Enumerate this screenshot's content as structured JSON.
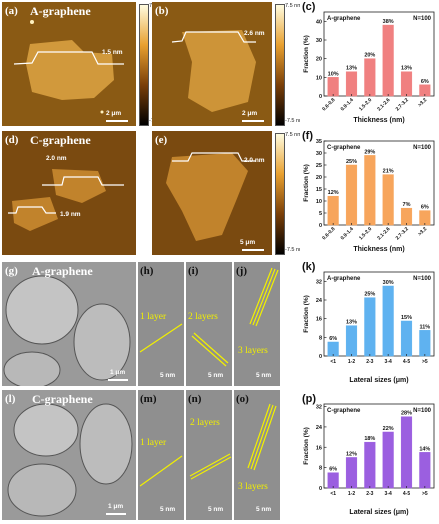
{
  "panels": {
    "a": {
      "letter": "(a)",
      "title": "A-graphene",
      "height_label": "1.5 nm",
      "scale": "2 μm"
    },
    "b": {
      "letter": "(b)",
      "height_label": "2.6 nm",
      "scale": "2 μm"
    },
    "d": {
      "letter": "(d)",
      "title": "C-graphene",
      "height_labels": [
        "2.0 nm",
        "1.9 nm"
      ],
      "scale": ""
    },
    "e": {
      "letter": "(e)",
      "height_label": "2.0 nm",
      "scale": "5 μm"
    },
    "g": {
      "letter": "(g)",
      "title": "A-graphene",
      "scale": "1 μm"
    },
    "h": {
      "letter": "(h)",
      "layer_label": "1 layer",
      "scale": "5 nm"
    },
    "i": {
      "letter": "(i)",
      "layer_label": "2 layers",
      "scale": "5 nm"
    },
    "j": {
      "letter": "(j)",
      "layer_label": "3 layers",
      "scale": "5 nm"
    },
    "l": {
      "letter": "(l)",
      "title": "C-graphene",
      "scale": "1 μm"
    },
    "m": {
      "letter": "(m)",
      "layer_label": "1 layer",
      "scale": "5 nm"
    },
    "n": {
      "letter": "(n)",
      "layer_label": "2 layers",
      "scale": "5 nm"
    },
    "o": {
      "letter": "(o)",
      "layer_label": "3 layers",
      "scale": "5 nm"
    }
  },
  "colorbar": {
    "top": "7.5 nm",
    "bottom": "-7.5 nm"
  },
  "chart_data": [
    {
      "letter": "(c)",
      "type": "bar",
      "label": "A-graphene",
      "n": "N=100",
      "categories": [
        "0.6-0.8",
        "0.9-1.4",
        "1.5-2.0",
        "2.1-2.6",
        "2.7-3.2",
        ">3.2"
      ],
      "values": [
        10,
        13,
        20,
        38,
        13,
        6
      ],
      "value_labels": [
        "10%",
        "13%",
        "20%",
        "38%",
        "13%",
        "6%"
      ],
      "yticks": [
        "0",
        "10",
        "20",
        "30",
        "40"
      ],
      "ylim": [
        0,
        45
      ],
      "xlabel": "Thickness (nm)",
      "ylabel": "Fraction (%)",
      "color": "#f08080"
    },
    {
      "letter": "(f)",
      "type": "bar",
      "label": "C-graphene",
      "n": "N=100",
      "categories": [
        "0.6-0.8",
        "0.9-1.4",
        "1.5-2.0",
        "2.1-2.6",
        "2.7-3.2",
        ">3.2"
      ],
      "values": [
        12,
        25,
        29,
        21,
        7,
        6
      ],
      "value_labels": [
        "12%",
        "25%",
        "29%",
        "21%",
        "7%",
        "6%"
      ],
      "yticks": [
        "0",
        "5",
        "10",
        "15",
        "20",
        "25",
        "30",
        "35"
      ],
      "ylim": [
        0,
        35
      ],
      "xlabel": "Thickness (nm)",
      "ylabel": "Fraction (%)",
      "color": "#f7a55c"
    },
    {
      "letter": "(k)",
      "type": "bar",
      "label": "A-graphene",
      "n": "N=100",
      "categories": [
        "<1",
        "1-2",
        "2-3",
        "3-4",
        "4-5",
        ">5"
      ],
      "values": [
        6,
        13,
        25,
        30,
        15,
        11
      ],
      "value_labels": [
        "6%",
        "13%",
        "25%",
        "30%",
        "15%",
        "11%"
      ],
      "yticks": [
        "0",
        "8",
        "16",
        "24",
        "32"
      ],
      "ylim": [
        0,
        36
      ],
      "xlabel": "Lateral sizes (μm)",
      "ylabel": "Fraction (%)",
      "color": "#5fb2f0"
    },
    {
      "letter": "(p)",
      "type": "bar",
      "label": "C-graphene",
      "n": "N=100",
      "categories": [
        "<1",
        "1-2",
        "2-3",
        "3-4",
        "4-5",
        ">5"
      ],
      "values": [
        6,
        12,
        18,
        22,
        28,
        14
      ],
      "value_labels": [
        "6%",
        "12%",
        "18%",
        "22%",
        "28%",
        "14%"
      ],
      "yticks": [
        "0",
        "8",
        "16",
        "24",
        "32"
      ],
      "ylim": [
        0,
        33
      ],
      "xlabel": "Lateral sizes (μm)",
      "ylabel": "Fraction (%)",
      "color": "#9b5fe0"
    }
  ]
}
